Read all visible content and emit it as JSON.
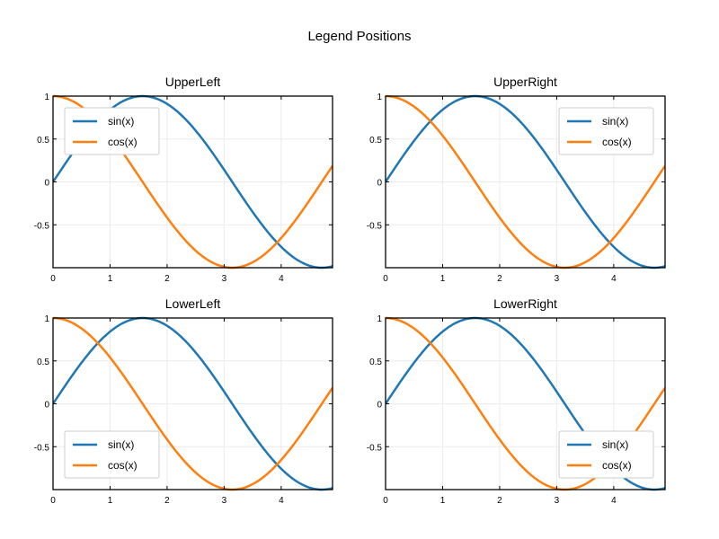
{
  "figure": {
    "title": "Legend Positions"
  },
  "colors": {
    "sin": "#1f77b4",
    "cos": "#ff7f0e"
  },
  "chart_data": [
    {
      "type": "line",
      "title": "UpperLeft",
      "legend_position": "top-left",
      "xlim": [
        0,
        4.9
      ],
      "ylim": [
        -1,
        1
      ],
      "xticks": [
        0,
        1,
        2,
        3,
        4
      ],
      "yticks": [
        -0.5,
        0,
        0.5,
        1
      ],
      "xtick_labels": [
        "0",
        "1",
        "2",
        "3",
        "4"
      ],
      "ytick_labels": [
        "-0.5",
        "0",
        "0.5",
        "1"
      ],
      "grid": true,
      "series": [
        {
          "name": "sin(x)",
          "color": "#1f77b4",
          "function": "sin(x)",
          "x_range": [
            0,
            4.9
          ]
        },
        {
          "name": "cos(x)",
          "color": "#ff7f0e",
          "function": "cos(x)",
          "x_range": [
            0,
            4.9
          ]
        }
      ]
    },
    {
      "type": "line",
      "title": "UpperRight",
      "legend_position": "top-right",
      "xlim": [
        0,
        4.9
      ],
      "ylim": [
        -1,
        1
      ],
      "xticks": [
        0,
        1,
        2,
        3,
        4
      ],
      "yticks": [
        -0.5,
        0,
        0.5,
        1
      ],
      "xtick_labels": [
        "0",
        "1",
        "2",
        "3",
        "4"
      ],
      "ytick_labels": [
        "-0.5",
        "0",
        "0.5",
        "1"
      ],
      "grid": true,
      "series": [
        {
          "name": "sin(x)",
          "color": "#1f77b4",
          "function": "sin(x)",
          "x_range": [
            0,
            4.9
          ]
        },
        {
          "name": "cos(x)",
          "color": "#ff7f0e",
          "function": "cos(x)",
          "x_range": [
            0,
            4.9
          ]
        }
      ]
    },
    {
      "type": "line",
      "title": "LowerLeft",
      "legend_position": "bottom-left",
      "xlim": [
        0,
        4.9
      ],
      "ylim": [
        -1,
        1
      ],
      "xticks": [
        0,
        1,
        2,
        3,
        4
      ],
      "yticks": [
        -0.5,
        0,
        0.5,
        1
      ],
      "xtick_labels": [
        "0",
        "1",
        "2",
        "3",
        "4"
      ],
      "ytick_labels": [
        "-0.5",
        "0",
        "0.5",
        "1"
      ],
      "grid": true,
      "series": [
        {
          "name": "sin(x)",
          "color": "#1f77b4",
          "function": "sin(x)",
          "x_range": [
            0,
            4.9
          ]
        },
        {
          "name": "cos(x)",
          "color": "#ff7f0e",
          "function": "cos(x)",
          "x_range": [
            0,
            4.9
          ]
        }
      ]
    },
    {
      "type": "line",
      "title": "LowerRight",
      "legend_position": "bottom-right",
      "xlim": [
        0,
        4.9
      ],
      "ylim": [
        -1,
        1
      ],
      "xticks": [
        0,
        1,
        2,
        3,
        4
      ],
      "yticks": [
        -0.5,
        0,
        0.5,
        1
      ],
      "xtick_labels": [
        "0",
        "1",
        "2",
        "3",
        "4"
      ],
      "ytick_labels": [
        "-0.5",
        "0",
        "0.5",
        "1"
      ],
      "grid": true,
      "series": [
        {
          "name": "sin(x)",
          "color": "#1f77b4",
          "function": "sin(x)",
          "x_range": [
            0,
            4.9
          ]
        },
        {
          "name": "cos(x)",
          "color": "#ff7f0e",
          "function": "cos(x)",
          "x_range": [
            0,
            4.9
          ]
        }
      ]
    }
  ]
}
